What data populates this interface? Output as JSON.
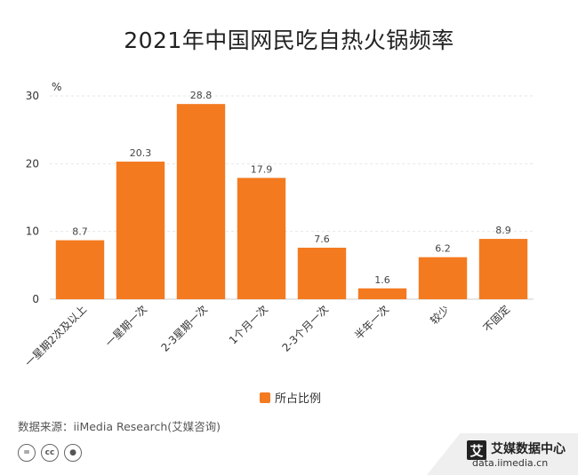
{
  "title": "2021年中国网民吃自热火锅频率",
  "chart_data": {
    "type": "bar",
    "title": "2021年中国网民吃自热火锅频率",
    "categories": [
      "一星期2次及以上",
      "一星期一次",
      "2-3星期一次",
      "1个月一次",
      "2-3个月一次",
      "半年一次",
      "较少",
      "不固定"
    ],
    "series": [
      {
        "name": "所占比例",
        "values": [
          8.7,
          20.3,
          28.8,
          17.9,
          7.6,
          1.6,
          6.2,
          8.9
        ]
      }
    ],
    "ylabel": "%",
    "ylim": [
      0,
      30
    ],
    "yticks": [
      0,
      10,
      20,
      30
    ],
    "grid": true,
    "legend_position": "bottom",
    "bar_color": "#F47A20"
  },
  "legend": {
    "label": "所占比例"
  },
  "source": "数据来源：iiMedia Research(艾媒咨询)",
  "brand": {
    "logo": "艾",
    "name": "艾媒数据中心",
    "url": "data.iimedia.cn"
  }
}
